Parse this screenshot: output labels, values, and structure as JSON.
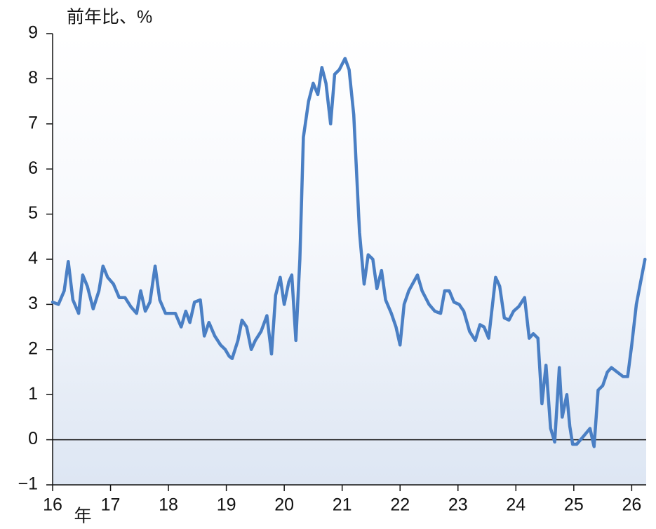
{
  "chart_data": {
    "type": "line",
    "y_label": "前年比、%",
    "x_unit_label": "年",
    "color": "#4a7fc4",
    "xlim": [
      16,
      26.25
    ],
    "ylim": [
      -1,
      9
    ],
    "xticks": [
      16,
      17,
      18,
      19,
      20,
      21,
      22,
      23,
      24,
      25,
      26
    ],
    "yticks": [
      {
        "value": -1,
        "label": "−1"
      },
      0,
      1,
      2,
      3,
      4,
      5,
      6,
      7,
      8,
      9
    ],
    "zero_line": true,
    "x": [
      16.0,
      16.1,
      16.2,
      16.27,
      16.35,
      16.45,
      16.52,
      16.6,
      16.7,
      16.8,
      16.87,
      16.95,
      17.05,
      17.15,
      17.25,
      17.35,
      17.45,
      17.52,
      17.6,
      17.68,
      17.77,
      17.85,
      17.95,
      18.05,
      18.12,
      18.22,
      18.3,
      18.37,
      18.45,
      18.55,
      18.62,
      18.7,
      18.8,
      18.9,
      18.98,
      19.05,
      19.1,
      19.2,
      19.27,
      19.35,
      19.43,
      19.5,
      19.6,
      19.7,
      19.78,
      19.85,
      19.93,
      20.0,
      20.08,
      20.13,
      20.2,
      20.27,
      20.33,
      20.42,
      20.5,
      20.58,
      20.65,
      20.72,
      20.8,
      20.87,
      20.95,
      21.05,
      21.12,
      21.2,
      21.3,
      21.38,
      21.45,
      21.53,
      21.6,
      21.68,
      21.75,
      21.85,
      21.93,
      22.0,
      22.07,
      22.15,
      22.3,
      22.38,
      22.5,
      22.6,
      22.7,
      22.77,
      22.85,
      22.93,
      23.02,
      23.1,
      23.2,
      23.3,
      23.38,
      23.45,
      23.53,
      23.65,
      23.72,
      23.8,
      23.88,
      23.96,
      24.05,
      24.15,
      24.23,
      24.3,
      24.38,
      24.45,
      24.52,
      24.6,
      24.67,
      24.75,
      24.8,
      24.88,
      24.93,
      24.98,
      25.05,
      25.15,
      25.28,
      25.35,
      25.42,
      25.5,
      25.58,
      25.65,
      25.75,
      25.85,
      25.93,
      26.0,
      26.08,
      26.23
    ],
    "values": [
      3.05,
      3.0,
      3.3,
      3.95,
      3.1,
      2.8,
      3.65,
      3.4,
      2.9,
      3.3,
      3.85,
      3.6,
      3.45,
      3.15,
      3.15,
      2.95,
      2.8,
      3.3,
      2.85,
      3.05,
      3.85,
      3.1,
      2.8,
      2.8,
      2.8,
      2.5,
      2.85,
      2.6,
      3.05,
      3.1,
      2.3,
      2.6,
      2.3,
      2.1,
      2.0,
      1.85,
      1.8,
      2.2,
      2.65,
      2.5,
      2.0,
      2.2,
      2.4,
      2.75,
      1.9,
      3.2,
      3.6,
      3.0,
      3.5,
      3.65,
      2.2,
      4.0,
      6.7,
      7.5,
      7.9,
      7.65,
      8.25,
      7.9,
      7.0,
      8.1,
      8.2,
      8.45,
      8.2,
      7.2,
      4.6,
      3.45,
      4.1,
      4.0,
      3.35,
      3.75,
      3.1,
      2.8,
      2.5,
      2.1,
      3.0,
      3.3,
      3.65,
      3.3,
      3.0,
      2.85,
      2.8,
      3.3,
      3.3,
      3.05,
      3.0,
      2.85,
      2.4,
      2.2,
      2.55,
      2.5,
      2.25,
      3.6,
      3.4,
      2.7,
      2.65,
      2.85,
      2.95,
      3.15,
      2.25,
      2.35,
      2.25,
      0.8,
      1.65,
      0.25,
      -0.05,
      1.6,
      0.5,
      1.0,
      0.3,
      -0.1,
      -0.1,
      0.05,
      0.25,
      -0.15,
      1.1,
      1.2,
      1.5,
      1.6,
      1.5,
      1.4,
      1.4,
      2.1,
      3.0,
      4.0
    ]
  }
}
